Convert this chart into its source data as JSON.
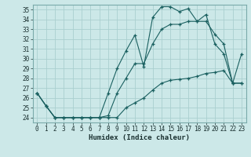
{
  "xlabel": "Humidex (Indice chaleur)",
  "xlim": [
    -0.5,
    23.5
  ],
  "ylim": [
    23.5,
    35.5
  ],
  "xticks": [
    0,
    1,
    2,
    3,
    4,
    5,
    6,
    7,
    8,
    9,
    10,
    11,
    12,
    13,
    14,
    15,
    16,
    17,
    18,
    19,
    20,
    21,
    22,
    23
  ],
  "yticks": [
    24,
    25,
    26,
    27,
    28,
    29,
    30,
    31,
    32,
    33,
    34,
    35
  ],
  "bg_color": "#cce8e8",
  "grid_color": "#aacfcf",
  "line_color": "#1a6060",
  "line1_y": [
    26.5,
    25.2,
    24.0,
    24.0,
    24.0,
    24.0,
    24.0,
    24.0,
    26.5,
    29.0,
    30.8,
    32.4,
    29.2,
    34.2,
    35.3,
    35.3,
    34.8,
    35.1,
    33.8,
    34.5,
    31.5,
    30.5,
    27.5,
    30.5
  ],
  "line2_y": [
    26.5,
    25.2,
    24.0,
    24.0,
    24.0,
    24.0,
    24.0,
    24.0,
    24.2,
    26.5,
    28.0,
    29.5,
    29.5,
    31.5,
    33.0,
    33.5,
    33.5,
    33.8,
    33.8,
    33.8,
    32.5,
    31.5,
    27.5,
    27.5
  ],
  "line3_y": [
    26.5,
    25.2,
    24.0,
    24.0,
    24.0,
    24.0,
    24.0,
    24.0,
    24.0,
    24.0,
    25.0,
    25.5,
    26.0,
    26.8,
    27.5,
    27.8,
    27.9,
    28.0,
    28.2,
    28.5,
    28.6,
    28.8,
    27.5,
    27.5
  ],
  "tick_fontsize": 5.5,
  "xlabel_fontsize": 6.5
}
